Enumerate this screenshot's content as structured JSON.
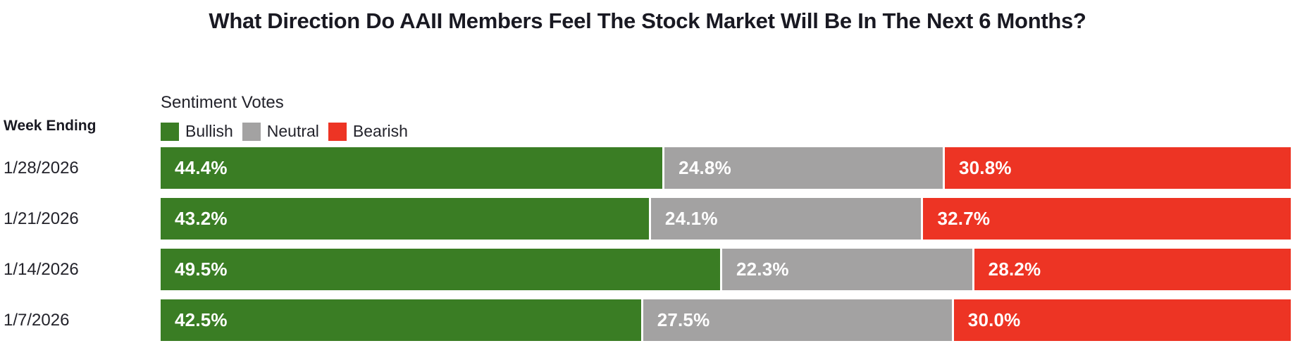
{
  "title": "What Direction Do AAII Members Feel The Stock Market Will Be In The Next 6 Months?",
  "row_axis_label": "Week Ending",
  "legend_title": "Sentiment Votes",
  "legend": [
    {
      "label": "Bullish",
      "color": "#3a7d24"
    },
    {
      "label": "Neutral",
      "color": "#a3a2a2"
    },
    {
      "label": "Bearish",
      "color": "#ed3424"
    }
  ],
  "colors": {
    "bullish": "#3a7d24",
    "neutral": "#a3a2a2",
    "bearish": "#ed3424",
    "title_text": "#191922",
    "value_text": "#ffffff",
    "background": "#ffffff"
  },
  "chart_data": {
    "type": "bar",
    "orientation": "horizontal-stacked",
    "title": "What Direction Do AAII Members Feel The Stock Market Will Be In The Next 6 Months?",
    "xlabel": "",
    "ylabel": "Week Ending",
    "value_format": "percent",
    "xlim": [
      0,
      100
    ],
    "grid": false,
    "legend_position": "top-left-above-bars",
    "categories": [
      "1/28/2026",
      "1/21/2026",
      "1/14/2026",
      "1/7/2026"
    ],
    "series": [
      {
        "name": "Bullish",
        "color": "#3a7d24",
        "values": [
          44.4,
          43.2,
          49.5,
          42.5
        ]
      },
      {
        "name": "Neutral",
        "color": "#a3a2a2",
        "values": [
          24.8,
          24.1,
          22.3,
          27.5
        ]
      },
      {
        "name": "Bearish",
        "color": "#ed3424",
        "values": [
          30.8,
          32.7,
          28.2,
          30.0
        ]
      }
    ]
  }
}
